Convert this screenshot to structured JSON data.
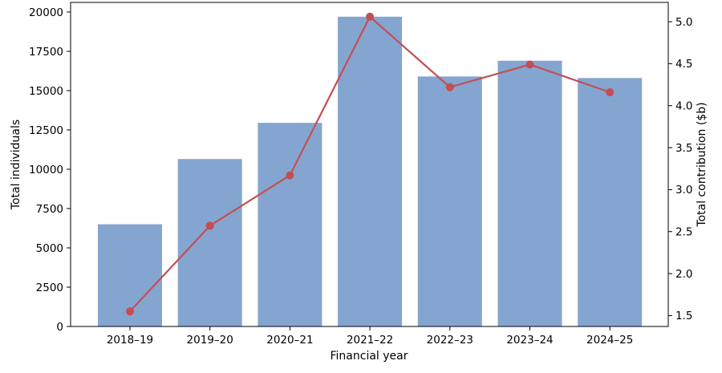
{
  "chart_data": {
    "type": "combo",
    "title": "",
    "xlabel": "Financial year",
    "categories": [
      "2018–19",
      "2019–20",
      "2020–21",
      "2021–22",
      "2022–23",
      "2023–24",
      "2024–25"
    ],
    "series": [
      {
        "name": "Total individuals",
        "type": "bar",
        "axis": "left",
        "color": "#85a5d1",
        "values": [
          6500,
          10650,
          12950,
          19700,
          15900,
          16900,
          15800
        ]
      },
      {
        "name": "Total contribution ($b)",
        "type": "line",
        "axis": "right",
        "color": "#c44e52",
        "values": [
          1.55,
          2.57,
          3.17,
          5.06,
          4.22,
          4.49,
          4.16
        ]
      }
    ],
    "left_axis": {
      "label": "Total individuals",
      "ticks": [
        0,
        2500,
        5000,
        7500,
        10000,
        12500,
        15000,
        17500,
        20000
      ],
      "range": [
        0,
        20610
      ]
    },
    "right_axis": {
      "label": "Total contribution ($b)",
      "ticks": [
        1.5,
        2.0,
        2.5,
        3.0,
        3.5,
        4.0,
        4.5,
        5.0
      ],
      "range": [
        1.37,
        5.23
      ]
    },
    "grid": false,
    "legend": "none"
  }
}
